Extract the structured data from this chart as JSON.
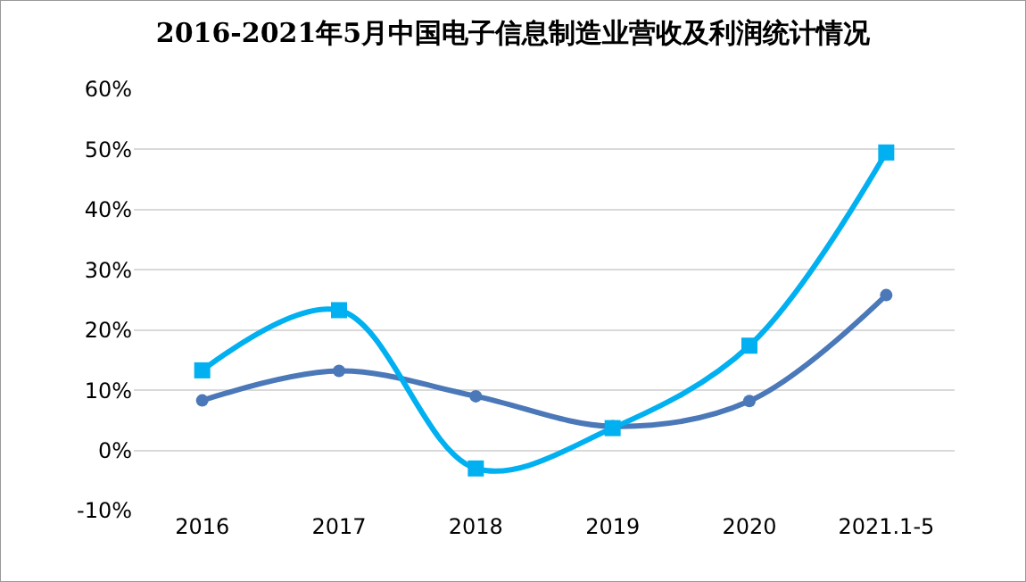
{
  "chart_data": {
    "type": "line",
    "title": "2016-2021年5月中国电子信息制造业营收及利润统计情况",
    "categories": [
      "2016",
      "2017",
      "2018",
      "2019",
      "2020",
      "2021.1-5"
    ],
    "series": [
      {
        "color": "#4a78b8",
        "marker": "circle",
        "values": [
          8.3,
          13.2,
          9,
          4,
          8.2,
          25.8
        ]
      },
      {
        "color": "#00b0f0",
        "marker": "square",
        "values": [
          13.3,
          23.3,
          -3,
          3.7,
          17.4,
          49.5
        ]
      }
    ],
    "ylim": [
      -10,
      60
    ],
    "yticks": [
      {
        "value": -10,
        "label": "-10%"
      },
      {
        "value": 0,
        "label": "0%"
      },
      {
        "value": 10,
        "label": "10%"
      },
      {
        "value": 20,
        "label": "20%"
      },
      {
        "value": 30,
        "label": "30%"
      },
      {
        "value": 40,
        "label": "40%"
      },
      {
        "value": 50,
        "label": "50%"
      },
      {
        "value": 60,
        "label": "60%"
      }
    ],
    "grid": "y",
    "legend": false
  }
}
